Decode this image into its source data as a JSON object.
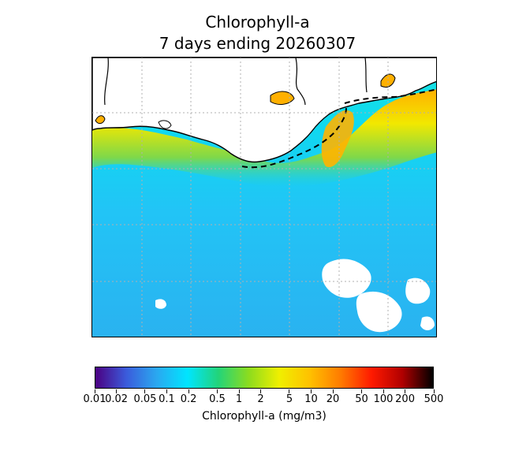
{
  "title_line1": "Chlorophyll-a",
  "title_line2": "7 days ending 20260307",
  "colorbar": {
    "label": "Chlorophyll-a (mg/m3)",
    "scale": "log",
    "range": [
      0.01,
      500
    ],
    "ticks": [
      "0.01",
      "0.02",
      "0.05",
      "0.1",
      "0.2",
      "0.5",
      "1",
      "2",
      "5",
      "10",
      "20",
      "50",
      "100",
      "200",
      "500"
    ],
    "colors": [
      "#4b0082",
      "#3b5bdb",
      "#2aa8f0",
      "#00e5ff",
      "#22d47a",
      "#8ddc1e",
      "#f0ef00",
      "#ffc000",
      "#ff7a00",
      "#ff1a00",
      "#b00000",
      "#000000"
    ]
  },
  "map": {
    "land_color": "#ffffff",
    "ocean_low_color": "#2ab8f2",
    "ocean_mid_color": "#1ed8f0",
    "coastal_high_color": "#ffb400",
    "gridlines": "dotted"
  }
}
